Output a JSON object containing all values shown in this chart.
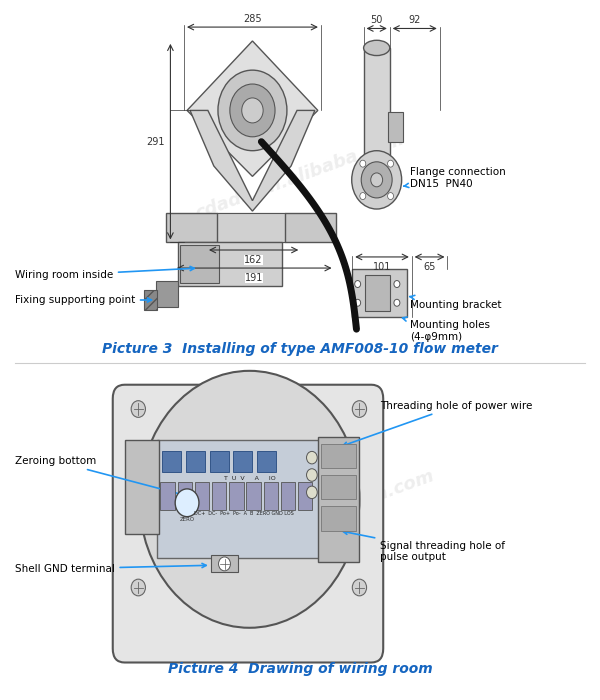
{
  "title3": "Picture 3  Installing of type AMF008-10 flow meter",
  "title4": "Picture 4  Drawing of wiring room",
  "title_color": "#1565C0",
  "title_fontsize": 10,
  "bg_color": "#ffffff",
  "annotation_color": "#000000",
  "arrow_color": "#2196F3",
  "line_color": "#555555",
  "dim_color": "#333333",
  "watermark": "http://cdads.en.alibaba.com",
  "dim_285": "285",
  "dim_291": "291",
  "dim_162": "162",
  "dim_191": "191",
  "dim_50": "50",
  "dim_92": "92",
  "dim_101": "101",
  "dim_65": "65",
  "label_wiring": "Wiring room inside",
  "label_fixing": "Fixing supporting point",
  "label_flange": "Flange connection\nDN15  PN40",
  "label_mounting_bracket": "Mounting bracket",
  "label_mounting_holes": "Mounting holes\n(4-φ9mm)",
  "label_zeroing": "Zeroing bottom",
  "label_shell": "Shell GND terminal",
  "label_threading_power": "Threading hole of power wire",
  "label_threading_signal": "Signal threading hole of\npulse output"
}
